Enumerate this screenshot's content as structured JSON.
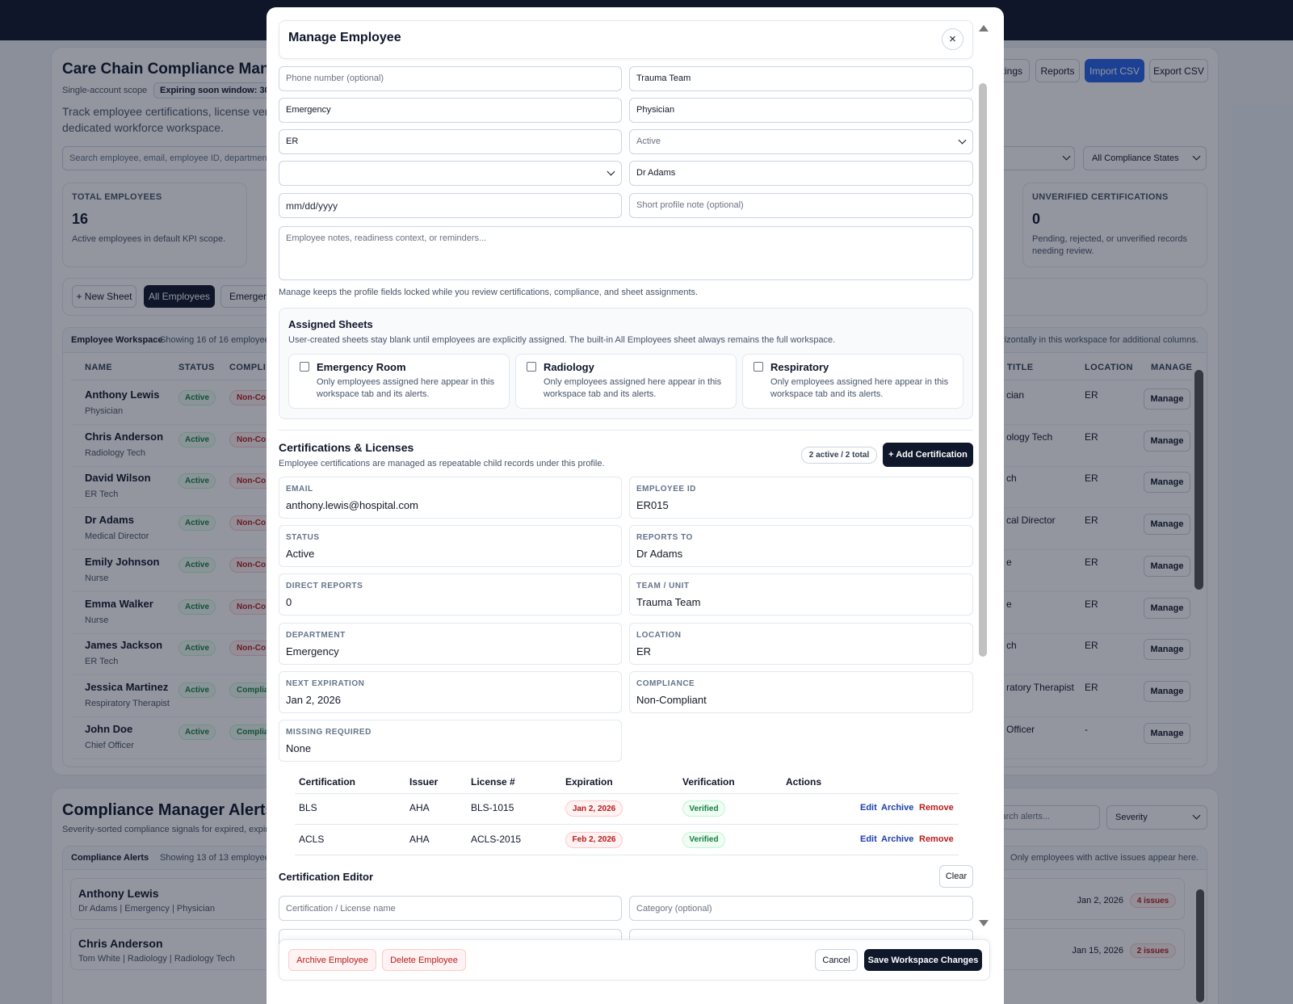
{
  "background": {
    "app_title": "Care Chain Compliance Manag",
    "scope": "Single-account scope",
    "window_badge": "Expiring soon window: 30",
    "description": [
      "Track employee certifications, license verific",
      "dedicated workforce workspace."
    ],
    "toolbar": [
      "tings",
      "Reports",
      "Import CSV",
      "Export CSV"
    ],
    "search_placeholder": "Search employee, email, employee ID, department, t",
    "compliance_filter": "All Compliance States",
    "kpis": [
      {
        "label": "TOTAL EMPLOYEES",
        "value": 16,
        "note": "Active employees in default KPI scope."
      },
      {
        "label": "UNVERIFIED CERTIFICATIONS",
        "value": 0,
        "note": "Pending, rejected, or unverified records needing review."
      }
    ],
    "sheet_tabs": [
      "+ New Sheet",
      "All Employees",
      "Emergenc"
    ],
    "workspace": {
      "title": "Employee Workspace",
      "showing": "Showing 16 of 16 employee",
      "hint": "rizontally in this workspace for additional columns.",
      "headers": [
        "NAME",
        "STATUS",
        "COMPLI",
        "/ TITLE",
        "LOCATION",
        "MANAGE"
      ],
      "rows": [
        {
          "name": "Anthony Lewis",
          "title": "Physician",
          "status": "Active",
          "compliance": "Non-Co",
          "job": "cian",
          "location": "ER",
          "action": "Manage"
        },
        {
          "name": "Chris Anderson",
          "title": "Radiology Tech",
          "status": "Active",
          "compliance": "Non-Co",
          "job": "ology Tech",
          "location": "ER",
          "action": "Manage"
        },
        {
          "name": "David Wilson",
          "title": "ER Tech",
          "status": "Active",
          "compliance": "Non-Co",
          "job": "ch",
          "location": "ER",
          "action": "Manage"
        },
        {
          "name": "Dr Adams",
          "title": "Medical Director",
          "status": "Active",
          "compliance": "Non-Co",
          "job": "cal Director",
          "location": "ER",
          "action": "Manage"
        },
        {
          "name": "Emily Johnson",
          "title": "Nurse",
          "status": "Active",
          "compliance": "Non-Co",
          "job": "e",
          "location": "ER",
          "action": "Manage"
        },
        {
          "name": "Emma Walker",
          "title": "Nurse",
          "status": "Active",
          "compliance": "Non-Co",
          "job": "e",
          "location": "ER",
          "action": "Manage"
        },
        {
          "name": "James Jackson",
          "title": "ER Tech",
          "status": "Active",
          "compliance": "Non-Co",
          "job": "ch",
          "location": "ER",
          "action": "Manage"
        },
        {
          "name": "Jessica Martinez",
          "title": "Respiratory Therapist",
          "status": "Active",
          "compliance": "Complia",
          "job": "ratory Therapist",
          "location": "ER",
          "action": "Manage"
        },
        {
          "name": "John Doe",
          "title": "Chief Officer",
          "status": "Active",
          "compliance": "Complia",
          "job": "Officer",
          "location": "-",
          "action": "Manage"
        }
      ]
    },
    "alerts": {
      "title": "Compliance Manager Alerts",
      "subtitle": "Severity-sorted compliance signals for expired, expirin",
      "search_placeholder": "arch alerts...",
      "severity_filter": "Severity",
      "list_title": "Compliance Alerts",
      "showing": "Showing 13 of 13 employee ale",
      "hint": "Only employees with active issues appear here.",
      "items": [
        {
          "name": "Anthony Lewis",
          "meta": "Dr Adams | Emergency | Physician",
          "date": "Jan 2, 2026",
          "issues": "4 issues"
        },
        {
          "name": "Chris Anderson",
          "meta": "Tom White | Radiology | Radiology Tech",
          "date": "Jan 15, 2026",
          "issues": "2 issues"
        }
      ]
    }
  },
  "modal": {
    "title": "Manage Employee",
    "close": "×",
    "form": {
      "phone": "Phone number (optional)",
      "team": "Trauma Team",
      "department": "Emergency",
      "job_title": "Physician",
      "location": "ER",
      "status": "Active",
      "reports_to": "Dr Adams",
      "date": "mm/dd/yyyy",
      "profile_note": "Short profile note (optional)",
      "notes": "Employee notes, readiness context, or reminders..."
    },
    "lock_note": "Manage keeps the profile fields locked while you review certifications, compliance, and sheet assignments.",
    "assigned_sheets": {
      "title": "Assigned Sheets",
      "description": "User-created sheets stay blank until employees are explicitly assigned. The built-in All Employees sheet always remains the full workspace.",
      "sheets": [
        {
          "name": "Emergency Room",
          "description": "Only employees assigned here appear in this workspace tab and its alerts."
        },
        {
          "name": "Radiology",
          "description": "Only employees assigned here appear in this workspace tab and its alerts."
        },
        {
          "name": "Respiratory",
          "description": "Only employees assigned here appear in this workspace tab and its alerts."
        }
      ]
    },
    "certifications": {
      "title": "Certifications & Licenses",
      "description": "Employee certifications are managed as repeatable child records under this profile.",
      "count_badge": "2 active / 2 total",
      "add_button": "+ Add Certification",
      "details": [
        {
          "label": "EMAIL",
          "value": "anthony.lewis@hospital.com"
        },
        {
          "label": "EMPLOYEE ID",
          "value": "ER015"
        },
        {
          "label": "STATUS",
          "value": "Active"
        },
        {
          "label": "REPORTS TO",
          "value": "Dr Adams"
        },
        {
          "label": "DIRECT REPORTS",
          "value": 0
        },
        {
          "label": "TEAM / UNIT",
          "value": "Trauma Team"
        },
        {
          "label": "DEPARTMENT",
          "value": "Emergency"
        },
        {
          "label": "LOCATION",
          "value": "ER"
        },
        {
          "label": "NEXT EXPIRATION",
          "value": "Jan 2, 2026"
        },
        {
          "label": "COMPLIANCE",
          "value": "Non-Compliant"
        },
        {
          "label": "MISSING REQUIRED",
          "value": "None"
        }
      ],
      "table": {
        "headers": [
          "Certification",
          "Issuer",
          "License #",
          "Expiration",
          "Verification",
          "Actions"
        ],
        "rows": [
          {
            "certification": "BLS",
            "issuer": "AHA",
            "license": "BLS-1015",
            "expiration": "Jan 2, 2026",
            "verification": "Verified",
            "actions": [
              "Edit",
              "Archive",
              "Remove"
            ]
          },
          {
            "certification": "ACLS",
            "issuer": "AHA",
            "license": "ACLS-2015",
            "expiration": "Feb 2, 2026",
            "verification": "Verified",
            "actions": [
              "Edit",
              "Archive",
              "Remove"
            ]
          }
        ]
      }
    },
    "editor": {
      "title": "Certification Editor",
      "clear": "Clear",
      "name_placeholder": "Certification / License name",
      "category_placeholder": "Category (optional)"
    },
    "footer": {
      "archive": "Archive Employee",
      "delete": "Delete Employee",
      "cancel": "Cancel",
      "save": "Save Workspace Changes"
    }
  }
}
